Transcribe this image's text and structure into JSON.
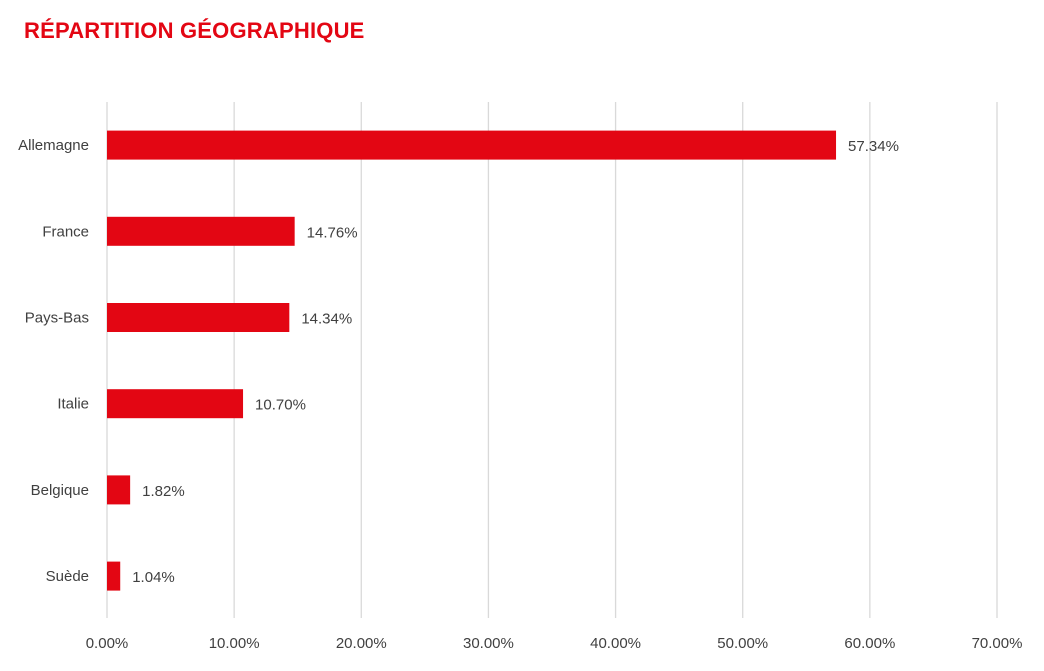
{
  "title": "RÉPARTITION GÉOGRAPHIQUE",
  "colors": {
    "bar": "#e30613",
    "title": "#e30613",
    "grid": "#d9d9d9",
    "text": "#404040"
  },
  "chart_data": {
    "type": "bar",
    "orientation": "horizontal",
    "title": "RÉPARTITION GÉOGRAPHIQUE",
    "categories": [
      "Allemagne",
      "France",
      "Pays-Bas",
      "Italie",
      "Belgique",
      "Suède"
    ],
    "values": [
      57.34,
      14.76,
      14.34,
      10.7,
      1.82,
      1.04
    ],
    "data_labels": [
      "57.34%",
      "14.76%",
      "14.34%",
      "10.70%",
      "1.82%",
      "1.04%"
    ],
    "xlim": [
      0,
      70
    ],
    "x_ticks": [
      0,
      10,
      20,
      30,
      40,
      50,
      60,
      70
    ],
    "x_tick_labels": [
      "0.00%",
      "10.00%",
      "20.00%",
      "30.00%",
      "40.00%",
      "50.00%",
      "60.00%",
      "70.00%"
    ],
    "xlabel": "",
    "ylabel": "",
    "grid": true,
    "legend": "none"
  }
}
